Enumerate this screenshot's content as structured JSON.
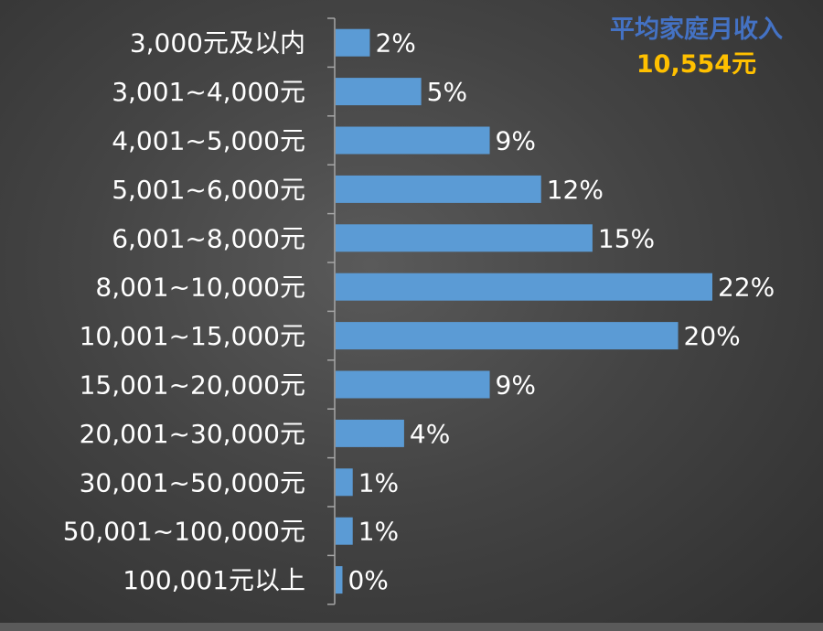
{
  "summary": {
    "title": "平均家庭月收入",
    "value": "10,554元"
  },
  "colors": {
    "bar": "#5b9bd5",
    "title": "#4472c4",
    "highlight": "#ffc000"
  },
  "chart_data": {
    "type": "bar",
    "orientation": "horizontal",
    "categories": [
      "3,000元及以内",
      "3,001~4,000元",
      "4,001~5,000元",
      "5,001~6,000元",
      "6,001~8,000元",
      "8,001~10,000元",
      "10,001~15,000元",
      "15,001~20,000元",
      "20,001~30,000元",
      "30,001~50,000元",
      "50,001~100,000元",
      "100,001元以上"
    ],
    "values": [
      2,
      5,
      9,
      12,
      15,
      22,
      20,
      9,
      4,
      1,
      1,
      0.4
    ],
    "data_labels": [
      "2%",
      "5%",
      "9%",
      "12%",
      "15%",
      "22%",
      "20%",
      "9%",
      "4%",
      "1%",
      "1%",
      "0%"
    ],
    "xlim": [
      0,
      22
    ],
    "grid": false
  }
}
